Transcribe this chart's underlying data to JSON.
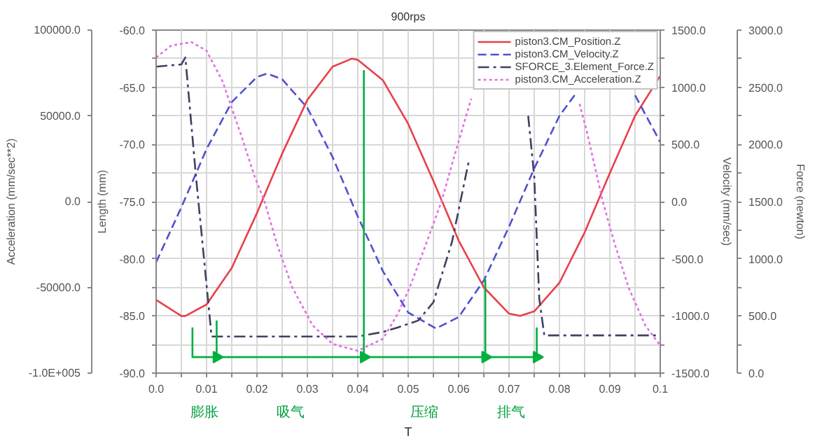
{
  "chart_data": [
    {
      "type": "line",
      "title": "900rps",
      "xlabel": "T",
      "ylabel": "Length (mm)",
      "y2label": "Velocity (mm/sec)",
      "y3label": "Force (newton)",
      "xlim": [
        0,
        0.1
      ],
      "xticks": [
        {
          "value": 0,
          "label": "0.0"
        },
        {
          "value": 0.005,
          "label": null
        },
        0.01,
        {
          "value": 0.015,
          "label": null
        },
        0.02,
        {
          "value": 0.025,
          "label": null
        },
        0.03,
        {
          "value": 0.035,
          "label": null
        },
        0.04,
        {
          "value": 0.045,
          "label": null
        },
        0.05,
        {
          "value": 0.055,
          "label": null
        },
        0.06,
        {
          "value": 0.065,
          "label": null
        },
        0.07,
        {
          "value": 0.075,
          "label": null
        },
        0.08,
        {
          "value": 0.085,
          "label": null
        },
        0.09,
        {
          "value": 0.095,
          "label": null
        },
        0.1
      ],
      "ylim": [
        -90,
        -60
      ],
      "yticks": [
        {
          "value": -90,
          "label": "-90.0"
        },
        {
          "value": -87.5,
          "label": null
        },
        {
          "value": -85,
          "label": "-85.0"
        },
        {
          "value": -82.5,
          "label": null
        },
        {
          "value": -80,
          "label": "-80.0"
        },
        {
          "value": -77.5,
          "label": null
        },
        {
          "value": -75,
          "label": "-75.0"
        },
        {
          "value": -72.5,
          "label": null
        },
        {
          "value": -70,
          "label": "-70.0"
        },
        {
          "value": -67.5,
          "label": null
        },
        {
          "value": -65,
          "label": "-65.0"
        },
        {
          "value": -62.5,
          "label": null
        },
        {
          "value": -60,
          "label": "-60.0"
        }
      ],
      "y2lim": [
        -1500,
        1500
      ],
      "y2ticks": [
        {
          "value": -1500,
          "label": "-1500.0"
        },
        {
          "value": -1250,
          "label": null
        },
        {
          "value": -1000,
          "label": "-1000.0"
        },
        {
          "value": -750,
          "label": null
        },
        {
          "value": -500,
          "label": "-500.0"
        },
        {
          "value": -250,
          "label": null
        },
        {
          "value": 0,
          "label": "0.0"
        },
        {
          "value": 250,
          "label": null
        },
        {
          "value": 500,
          "label": "500.0"
        },
        {
          "value": 750,
          "label": null
        },
        {
          "value": 1000,
          "label": "1000.0"
        },
        {
          "value": 1250,
          "label": null
        },
        {
          "value": 1500,
          "label": "1500.0"
        }
      ],
      "y3lim": [
        0,
        3000
      ],
      "y3ticks": [
        {
          "value": 0,
          "label": "0.0"
        },
        {
          "value": 250,
          "label": null
        },
        {
          "value": 500,
          "label": "500.0"
        },
        {
          "value": 750,
          "label": null
        },
        {
          "value": 1000,
          "label": "1000.0"
        },
        {
          "value": 1250,
          "label": null
        },
        {
          "value": 1500,
          "label": "1500.0"
        },
        {
          "value": 1750,
          "label": null
        },
        {
          "value": 2000,
          "label": "2000.0"
        },
        {
          "value": 2250,
          "label": null
        },
        {
          "value": 2500,
          "label": "2500.0"
        },
        {
          "value": 2750,
          "label": null
        },
        {
          "value": 3000,
          "label": "3000.0"
        }
      ],
      "grid": true,
      "legend": "top right",
      "marker": "none",
      "annotations": [
        "膨胀",
        "吸气",
        "压缩",
        "排气"
      ],
      "series": [
        {
          "name": "piston3.CM_Position.Z",
          "color": "#e8404a",
          "line_style": "solid",
          "x": [
            0,
            0.005,
            0.0058,
            0.01,
            0.015,
            0.02,
            0.025,
            0.03,
            0.035,
            0.0388,
            0.04,
            0.045,
            0.05,
            0.055,
            0.06,
            0.065,
            0.07,
            0.0722,
            0.075,
            0.08,
            0.085,
            0.09,
            0.095,
            0.1
          ],
          "values": [
            -83.6,
            -85.0,
            -85.0,
            -84.0,
            -80.8,
            -76.0,
            -70.8,
            -66.1,
            -63.2,
            -62.5,
            -62.6,
            -64.4,
            -68.2,
            -73.2,
            -78.4,
            -82.5,
            -84.8,
            -85.0,
            -84.6,
            -82.1,
            -77.7,
            -72.5,
            -67.5,
            -64.0
          ]
        },
        {
          "name": "piston3.CM_Velocity.Z",
          "color": "#5050d0",
          "line_style": "dashed",
          "axis": "y2",
          "x": [
            0,
            0.005,
            0.01,
            0.015,
            0.02,
            0.022,
            0.025,
            0.03,
            0.035,
            0.04,
            0.045,
            0.05,
            0.0555,
            0.06,
            0.065,
            0.07,
            0.075,
            0.08,
            0.0835,
            0.085,
            0.093,
            0.095,
            0.1
          ],
          "values": [
            -530,
            -50,
            460,
            870,
            1090,
            1120,
            1070,
            820,
            390,
            -130,
            -610,
            -970,
            -1110,
            -1010,
            -690,
            -220,
            290,
            750,
            960,
            null,
            null,
            930,
            520
          ]
        },
        {
          "name": "SFORCE_3.Element_Force.Z",
          "color": "#404060",
          "line_style": "dashdot",
          "axis": "y3",
          "x": [
            0,
            0.005,
            0.0058,
            0.0079,
            0.011,
            0.04,
            0.045,
            0.048,
            0.052,
            0.055,
            0.0587,
            0.062,
            0.0654,
            0.07,
            0.0738,
            0.075,
            0.076,
            0.077,
            0.1
          ],
          "values": [
            2680,
            2700,
            2760,
            1720,
            320,
            320,
            360,
            400,
            460,
            620,
            1150,
            1850,
            null,
            null,
            2250,
            1720,
            650,
            330,
            330
          ]
        },
        {
          "type": "scatter",
          "marker": "triangle",
          "color": "#00b040",
          "x": [
            0.012,
            0.0412,
            0.0653,
            0.0755
          ],
          "values": [
            -88.6,
            -88.6,
            -88.6,
            -88.6
          ]
        },
        {
          "color": "#00b040",
          "line_style": "solid",
          "x": [
            0.0072,
            0.0072,
            0.012,
            null,
            0.012,
            0.012,
            0.0412,
            null,
            0.0412,
            0.0412,
            0.0653,
            null,
            0.0653,
            0.0653,
            0.0755,
            null,
            0.0755,
            0.0755
          ],
          "values": [
            -86.0,
            -88.6,
            -88.6,
            null,
            -85.4,
            -88.6,
            -88.6,
            null,
            -63.5,
            -88.6,
            -88.6,
            null,
            -81.8,
            -88.6,
            -88.6,
            null,
            -86.0,
            -88.6
          ]
        }
      ]
    },
    {
      "type": "line",
      "ylabel": "Acceleration (mm/sec**2)",
      "tick_labels": "y",
      "xlim": [
        0,
        0.1
      ],
      "ylim": [
        -100000,
        100000
      ],
      "yticks": [
        {
          "value": -100000,
          "label": "-1.0E+005"
        },
        {
          "value": -50000,
          "label": "-50000.0"
        },
        {
          "value": 0,
          "label": "0.0"
        },
        {
          "value": 50000,
          "label": "50000.0"
        },
        {
          "value": 100000,
          "label": "100000.0"
        }
      ],
      "series": [
        {
          "name": "piston3.CM_Acceleration.Z",
          "color": "#e070e0",
          "line_style": "dotted",
          "x": [
            0,
            0.003,
            0.007,
            0.01,
            0.0132,
            0.0167,
            0.0195,
            0.0215,
            0.024,
            0.027,
            0.031,
            0.035,
            0.04,
            0.045,
            0.048,
            0.0503,
            0.0535,
            0.0566,
            0.059,
            0.0615,
            0.0625,
            0.07,
            0.084,
            0.0855,
            0.0886,
            0.091,
            0.0937,
            0.097,
            0.1
          ],
          "values": [
            84000,
            91000,
            93000,
            88000,
            70000,
            40000,
            15000,
            0,
            -25000,
            -50000,
            -72000,
            -83000,
            -87000,
            -80000,
            -65000,
            -50000,
            -25000,
            0,
            25000,
            50000,
            60000,
            null,
            57000,
            40000,
            0,
            -25000,
            -50000,
            -72000,
            -84000
          ]
        }
      ]
    }
  ]
}
